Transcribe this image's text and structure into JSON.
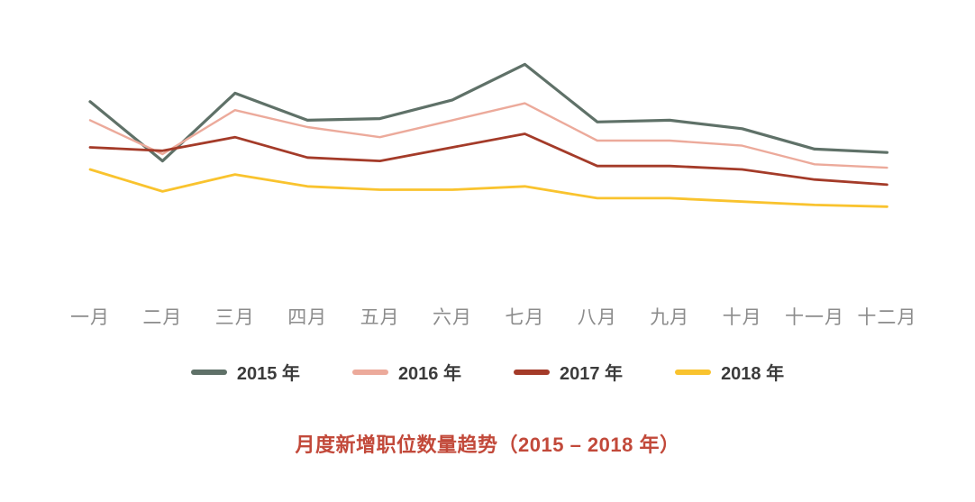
{
  "chart_data": {
    "type": "line",
    "title": "月度新增职位数量趋势（2015 – 2018 年）",
    "categories": [
      "一月",
      "二月",
      "三月",
      "四月",
      "五月",
      "六月",
      "七月",
      "八月",
      "九月",
      "十月",
      "十一月",
      "十二月"
    ],
    "series": [
      {
        "name": "2015 年",
        "color": "#5f7168",
        "stroke_width": 3.2,
        "values": [
          73,
          38,
          78,
          62,
          63,
          74,
          95,
          61,
          62,
          57,
          45,
          43
        ]
      },
      {
        "name": "2016 年",
        "color": "#ecaa9b",
        "stroke_width": 2.4,
        "values": [
          62,
          42,
          68,
          58,
          52,
          62,
          72,
          50,
          50,
          47,
          36,
          34
        ]
      },
      {
        "name": "2017 年",
        "color": "#a43b29",
        "stroke_width": 2.8,
        "values": [
          46,
          44,
          52,
          40,
          38,
          46,
          54,
          35,
          35,
          33,
          27,
          24
        ]
      },
      {
        "name": "2018 年",
        "color": "#f9c32e",
        "stroke_width": 2.8,
        "values": [
          33,
          20,
          30,
          23,
          21,
          21,
          23,
          16,
          16,
          14,
          12,
          11
        ]
      }
    ],
    "xlabel": "",
    "ylabel": "",
    "ylim": [
      0,
      100
    ],
    "value_scale_note": "no numeric axis shown; values are relative 0-100 estimates",
    "grid": false,
    "axes_visible": false,
    "legend_position": "bottom",
    "title_position": "bottom"
  },
  "styles": {
    "background": "#ffffff",
    "title_color": "#c2493a",
    "axis_label_color": "#8c8c8c",
    "legend_text_color": "#3b3b3b"
  }
}
